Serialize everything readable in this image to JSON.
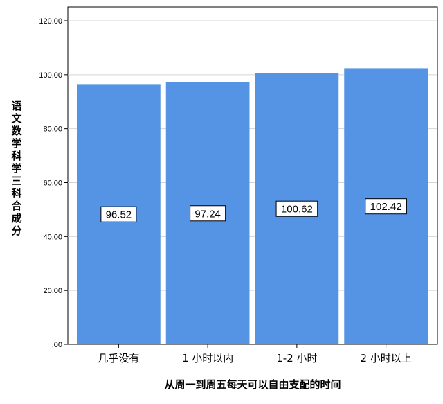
{
  "chart_data": {
    "type": "bar",
    "categories": [
      "几乎没有",
      "1 小时以内",
      "1-2 小时",
      "2 小时以上"
    ],
    "values": [
      96.52,
      97.24,
      100.62,
      102.42
    ],
    "data_labels": [
      "96.52",
      "97.24",
      "100.62",
      "102.42"
    ],
    "xlabel": "从周一到周五每天可以自由支配的时间",
    "ylabel": "语文数学科学三科合成分",
    "ylim": [
      0,
      120
    ],
    "yticks": [
      ".00",
      "20.00",
      "40.00",
      "60.00",
      "80.00",
      "100.00",
      "120.00"
    ],
    "ytick_values": [
      0,
      20,
      40,
      60,
      80,
      100,
      120
    ],
    "grid": true,
    "bar_color": "#5594e4",
    "plot_background": "#ffffff"
  }
}
